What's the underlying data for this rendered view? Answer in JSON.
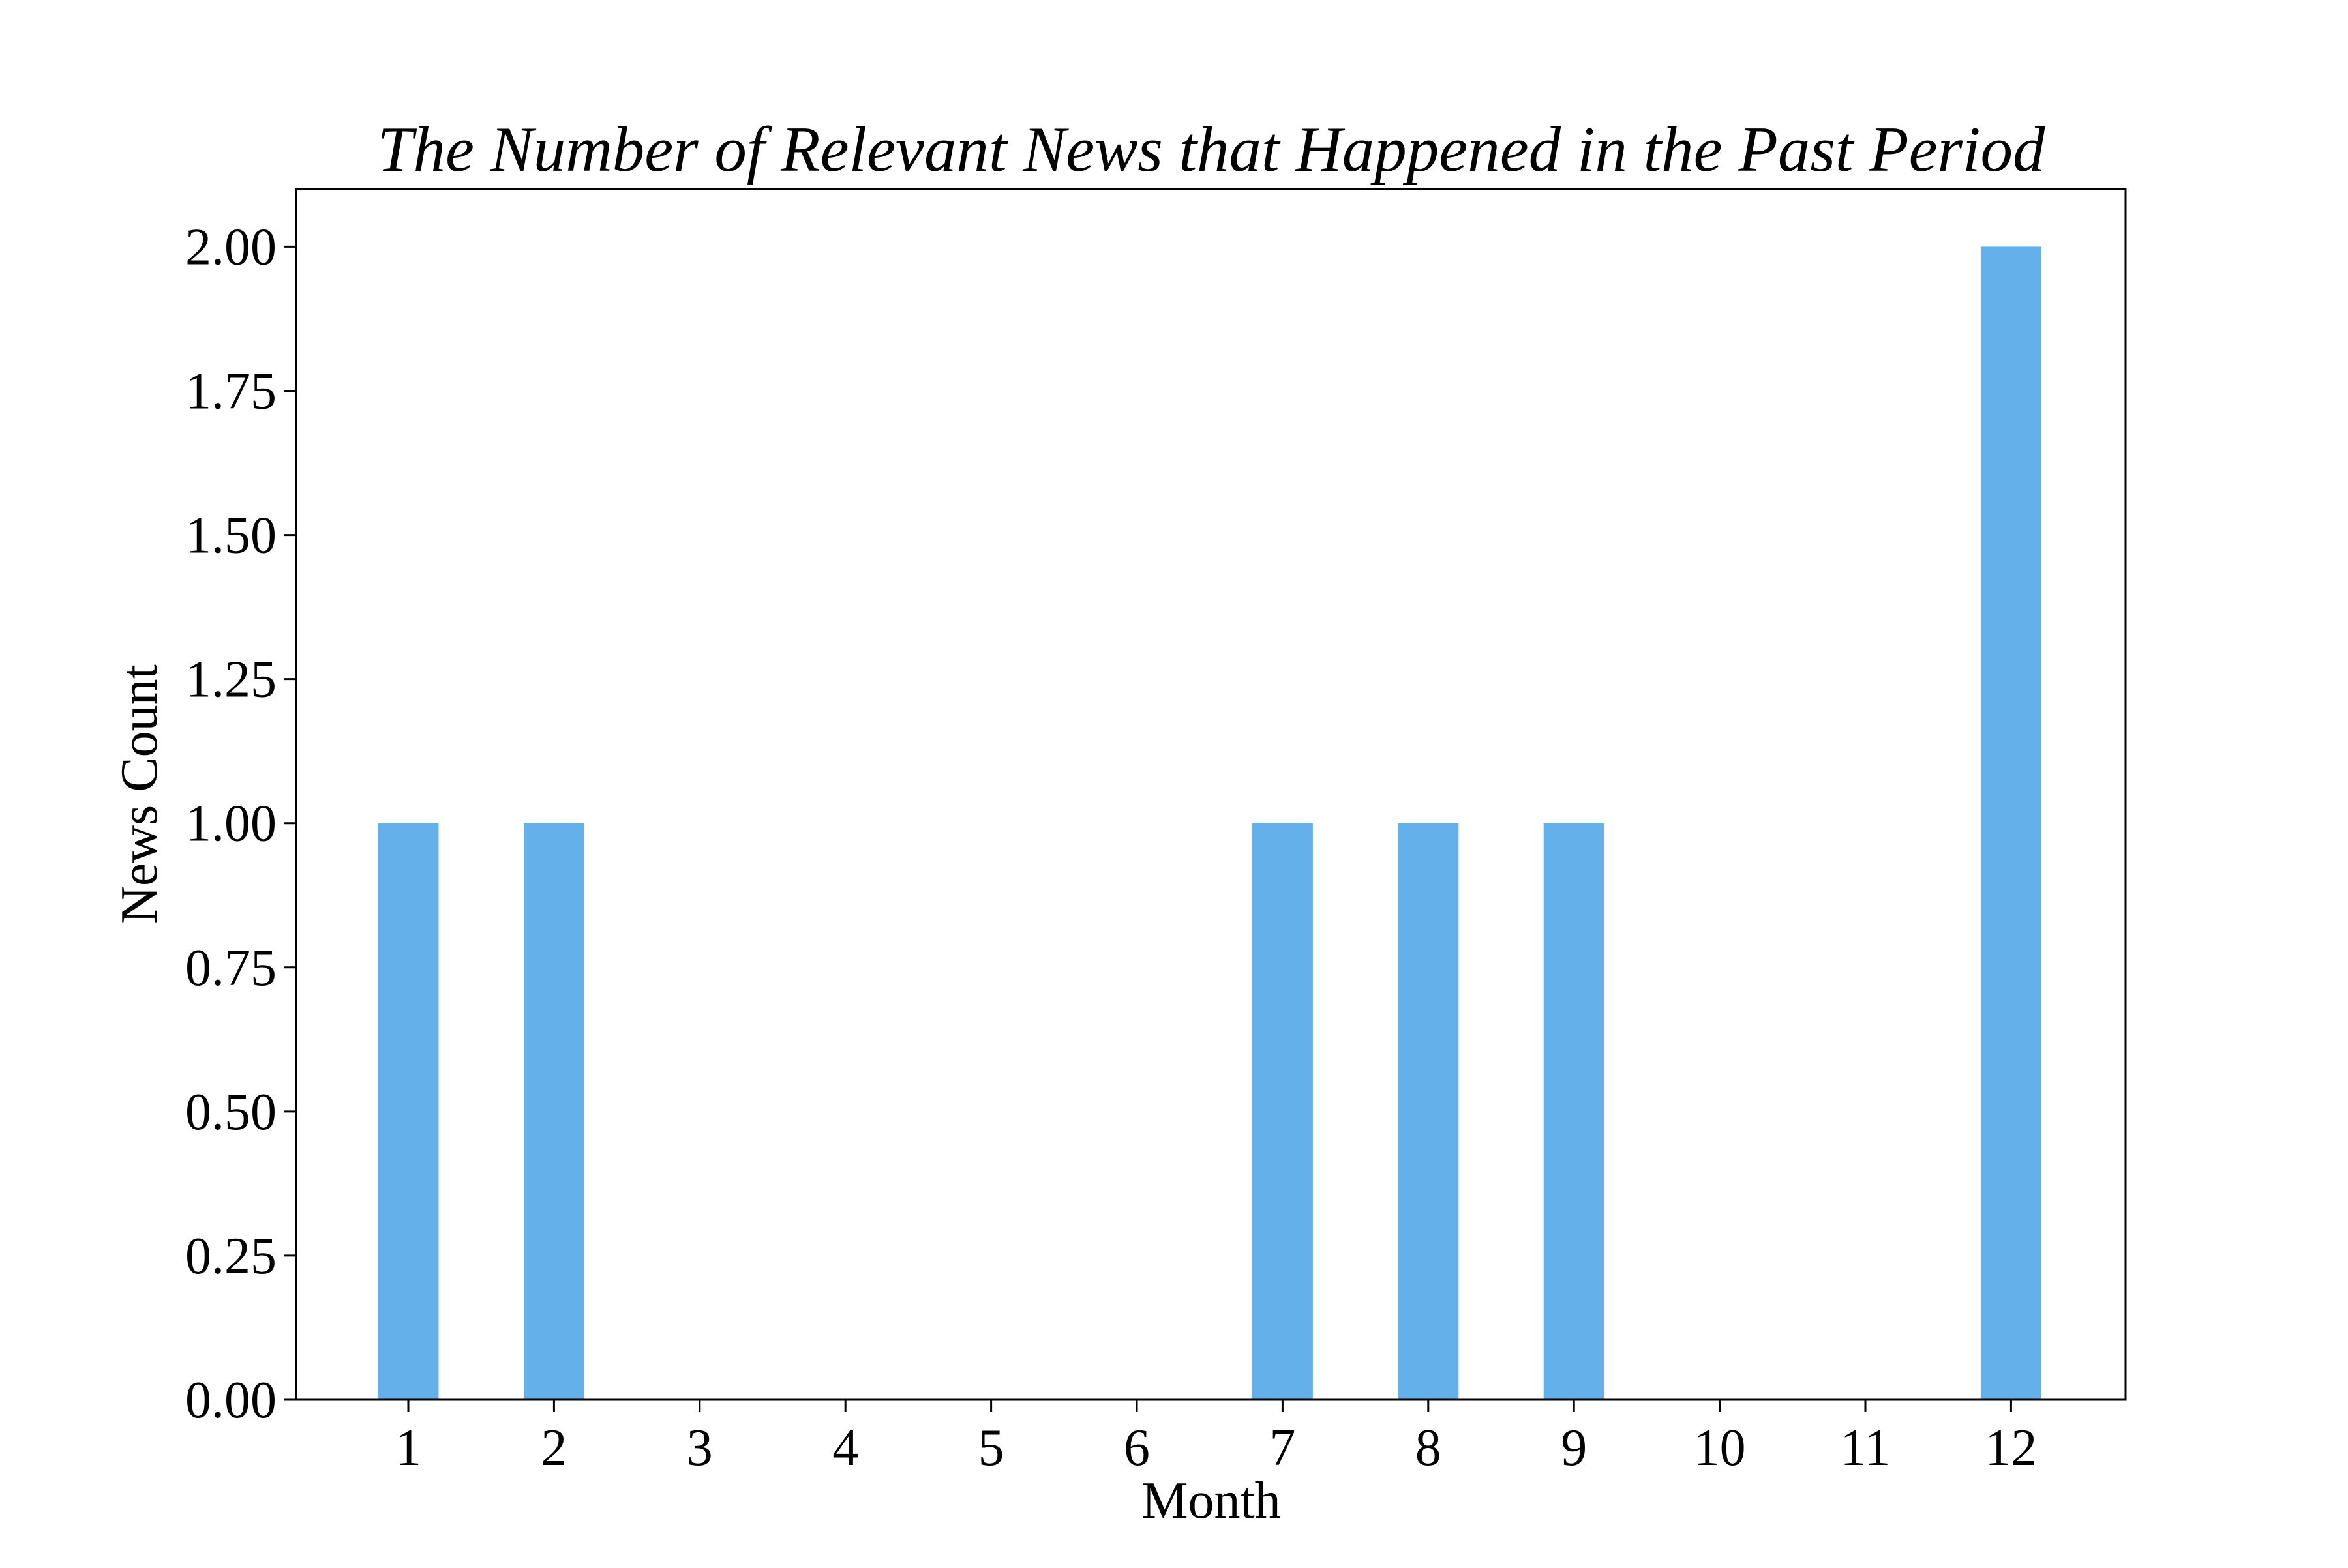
{
  "chart_data": {
    "type": "bar",
    "title": "The Number of Relevant News that Happened in the Past Period",
    "xlabel": "Month",
    "ylabel": "News Count",
    "categories": [
      "1",
      "2",
      "3",
      "4",
      "5",
      "6",
      "7",
      "8",
      "9",
      "10",
      "11",
      "12"
    ],
    "values": [
      1,
      1,
      0,
      0,
      0,
      0,
      1,
      1,
      1,
      0,
      0,
      2
    ],
    "ylim": [
      0,
      2.1
    ],
    "yticks": [
      "0.00",
      "0.25",
      "0.50",
      "0.75",
      "1.00",
      "1.25",
      "1.50",
      "1.75",
      "2.00"
    ],
    "bar_color": "#63b0ea",
    "grid": false,
    "legend": "none"
  }
}
